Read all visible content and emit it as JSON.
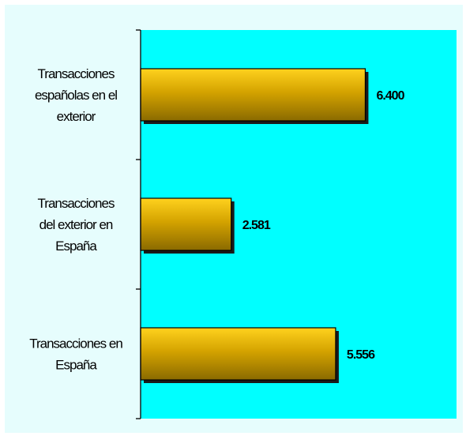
{
  "chart_data": {
    "type": "bar",
    "orientation": "horizontal",
    "categories": [
      [
        "Transacciones",
        "españolas en el",
        "exterior"
      ],
      [
        "Transacciones",
        "del exterior en",
        "España"
      ],
      [
        "Transacciones en",
        "España"
      ]
    ],
    "values": [
      6400,
      2581,
      5556
    ],
    "value_labels": [
      "6.400",
      "2.581",
      "5.556"
    ],
    "xlim": [
      0,
      9000
    ],
    "grid": false,
    "legend": "none",
    "colors": {
      "plot_background": "#00ffff",
      "outer_background": "#e6fdfd",
      "bar_fill": "#d4a300",
      "bar_highlight": "#ffd21e",
      "bar_shadow": "#8a6a00"
    }
  }
}
